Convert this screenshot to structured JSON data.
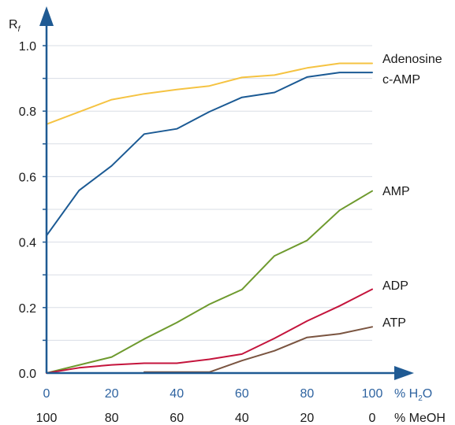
{
  "chart_data": {
    "type": "line",
    "ylabel": "R",
    "ylabel_sub": "f",
    "xlabel": "% H",
    "xlabel_sub": "2",
    "xlabel_tail": "O",
    "x2label": "% MeOH",
    "xlim": [
      0,
      100
    ],
    "ylim": [
      0,
      1.0
    ],
    "grid": true,
    "x_ticks": [
      "0",
      "20",
      "40",
      "60",
      "80",
      "100"
    ],
    "x2_ticks": [
      "100",
      "80",
      "60",
      "40",
      "20",
      "0"
    ],
    "y_ticks": [
      "0.0",
      "0.2",
      "0.4",
      "0.6",
      "0.8",
      "1.0"
    ],
    "colors": {
      "axis": "#1f5a93",
      "grid": "#d9dde6",
      "tick_x": "#2e63a0",
      "text": "#1a1a1a"
    },
    "series": [
      {
        "name": "Adenosine",
        "color": "#f5c342",
        "x": [
          0,
          20,
          30,
          40,
          50,
          60,
          70,
          80,
          90,
          100
        ],
        "y": [
          0.76,
          0.835,
          0.853,
          0.866,
          0.877,
          0.903,
          0.91,
          0.932,
          0.946,
          0.946
        ]
      },
      {
        "name": "c-AMP",
        "color": "#1b5a94",
        "x": [
          0,
          10,
          20,
          30,
          40,
          50,
          60,
          70,
          80,
          90,
          100
        ],
        "y": [
          0.42,
          0.558,
          0.633,
          0.73,
          0.746,
          0.798,
          0.842,
          0.857,
          0.904,
          0.918,
          0.918
        ]
      },
      {
        "name": "AMP",
        "color": "#6e9a2e",
        "x": [
          0,
          20,
          30,
          40,
          50,
          60,
          70,
          80,
          90,
          100
        ],
        "y": [
          0.0,
          0.049,
          0.104,
          0.154,
          0.21,
          0.255,
          0.358,
          0.405,
          0.497,
          0.556
        ]
      },
      {
        "name": "ADP",
        "color": "#c4143c",
        "x": [
          0,
          10,
          20,
          30,
          40,
          50,
          60,
          70,
          80,
          90,
          100
        ],
        "y": [
          0.0,
          0.016,
          0.025,
          0.03,
          0.03,
          0.042,
          0.058,
          0.106,
          0.159,
          0.205,
          0.256
        ]
      },
      {
        "name": "ATP",
        "color": "#7a5440",
        "x": [
          30,
          40,
          50,
          60,
          70,
          80,
          90,
          100
        ],
        "y": [
          0.003,
          0.003,
          0.003,
          0.038,
          0.068,
          0.109,
          0.12,
          0.141
        ]
      }
    ]
  }
}
